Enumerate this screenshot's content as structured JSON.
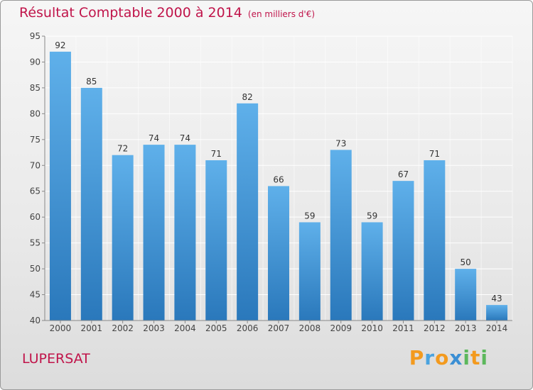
{
  "header": {
    "title": "Résultat Comptable 2000 à 2014",
    "unit_note": "(en milliers d'€)"
  },
  "footer": {
    "commune": "LUPERSAT",
    "brand": "Proxiti"
  },
  "colors": {
    "title": "#c0144a",
    "bar_top": "#5fb0ea",
    "bar_bottom": "#2a78bb",
    "grid": "#ffffff",
    "axis": "#555555"
  },
  "chart_data": {
    "type": "bar",
    "categories": [
      "2000",
      "2001",
      "2002",
      "2003",
      "2004",
      "2005",
      "2006",
      "2007",
      "2008",
      "2009",
      "2010",
      "2011",
      "2012",
      "2013",
      "2014"
    ],
    "values": [
      92,
      85,
      72,
      74,
      74,
      71,
      82,
      66,
      59,
      73,
      59,
      67,
      71,
      50,
      43
    ],
    "title": "Résultat Comptable 2000 à 2014",
    "subtitle": "(en milliers d'€)",
    "xlabel": "",
    "ylabel": "",
    "ylim": [
      40,
      95
    ],
    "yticks": [
      40,
      45,
      50,
      55,
      60,
      65,
      70,
      75,
      80,
      85,
      90,
      95
    ],
    "grid": true,
    "data_labels": true
  }
}
